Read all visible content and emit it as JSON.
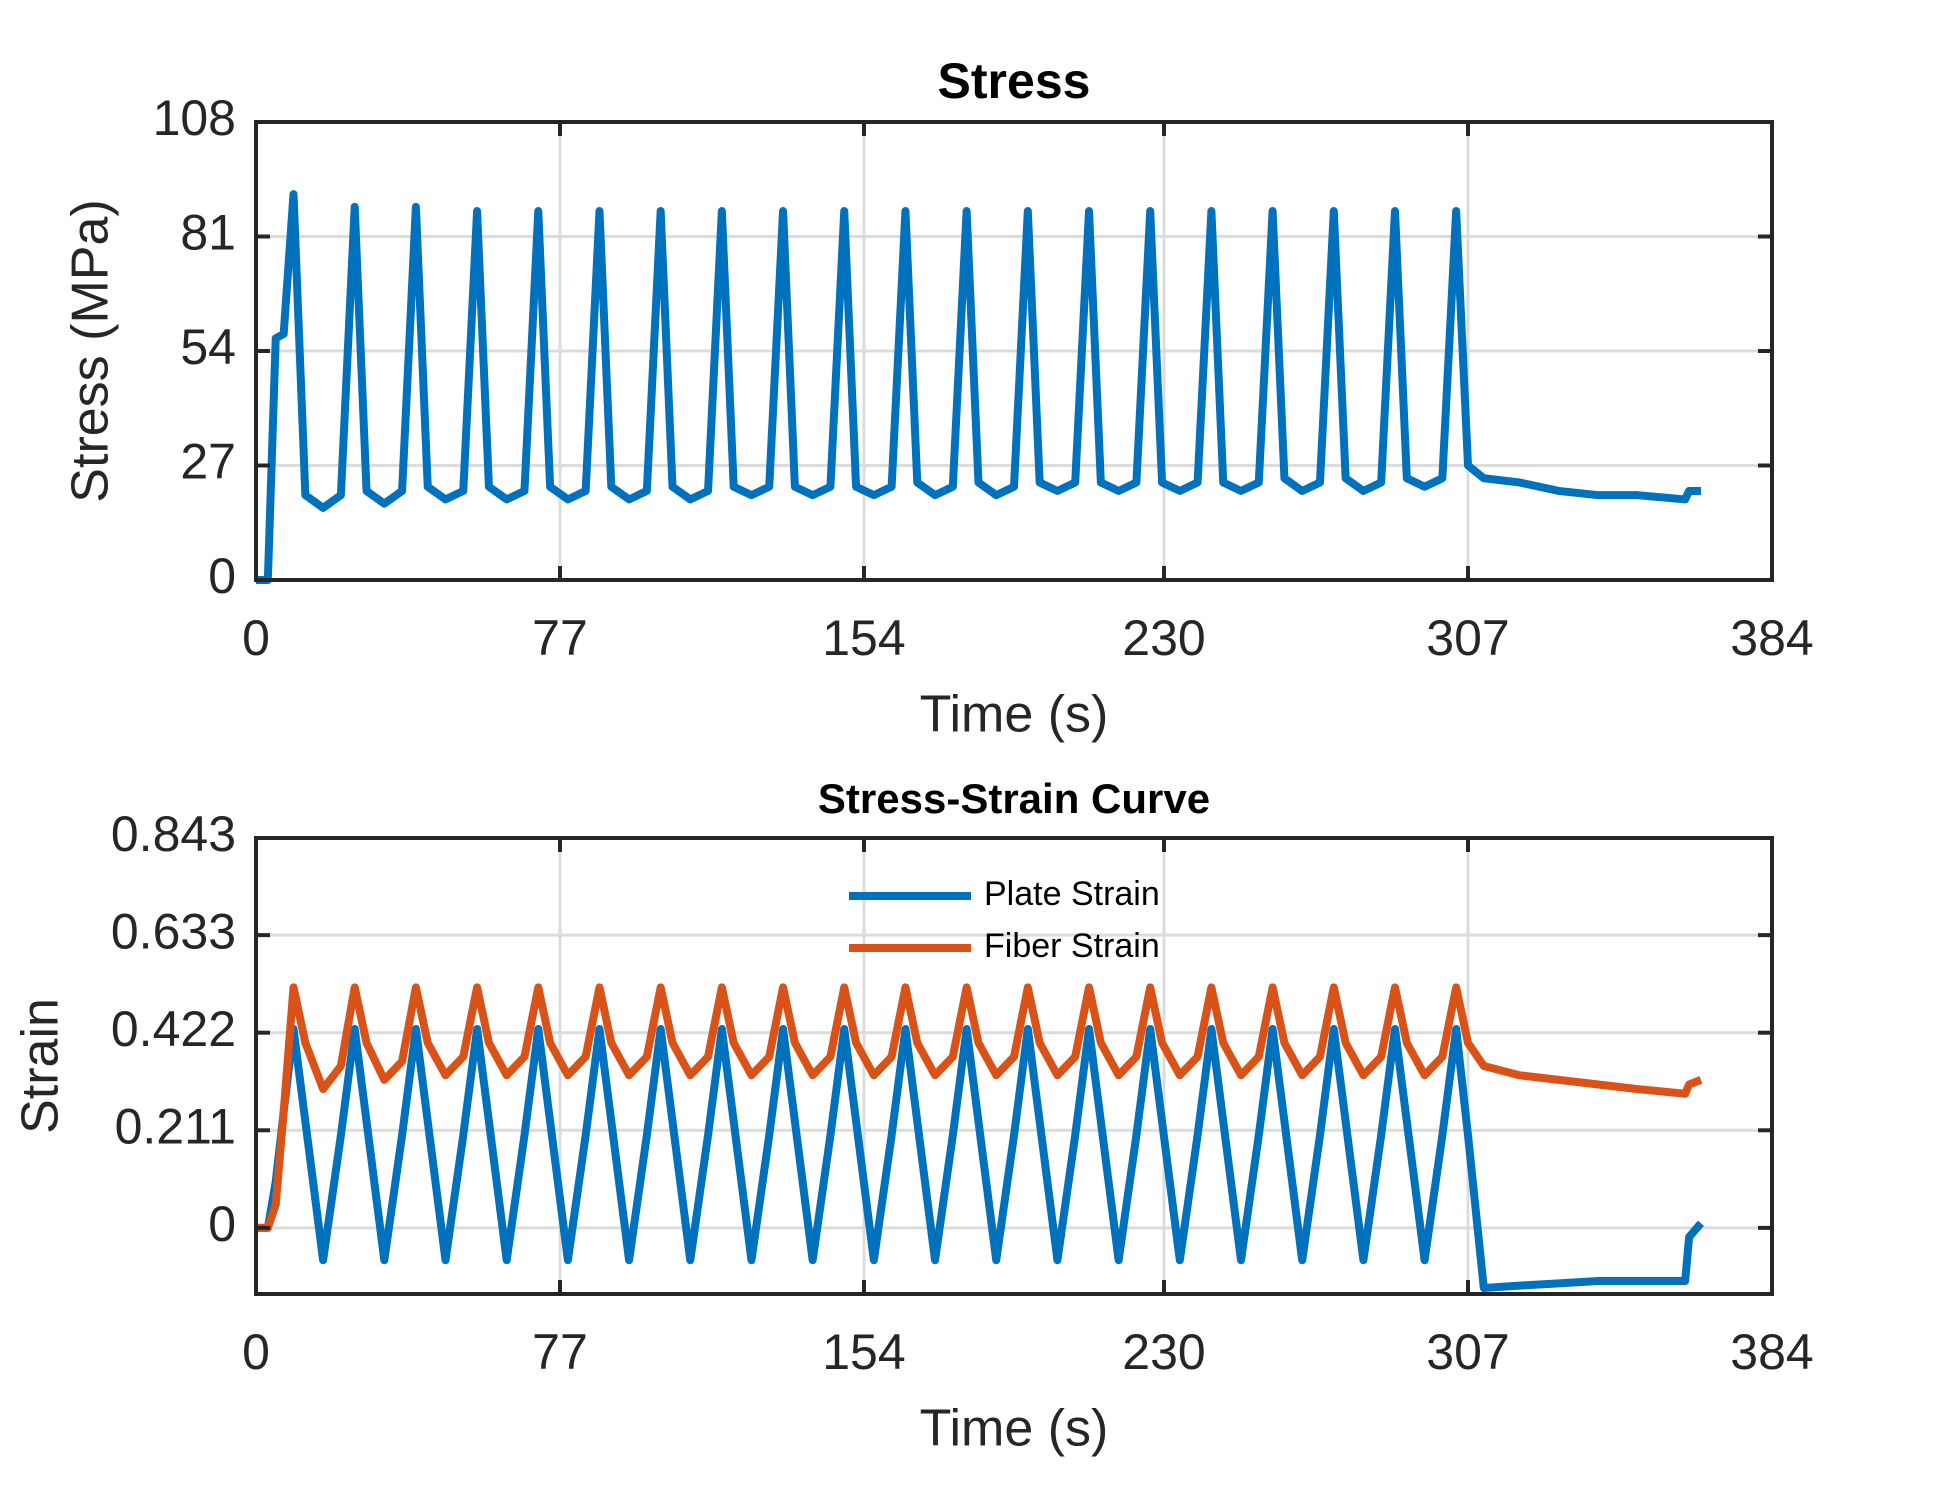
{
  "chart_data": [
    {
      "type": "line",
      "title": "Stress",
      "xlabel": "Time (s)",
      "ylabel": "Stress (MPa)",
      "xlim": [
        0,
        384
      ],
      "xticks": [
        0,
        77,
        154,
        230,
        307,
        384
      ],
      "ylim": [
        0,
        108
      ],
      "yticks": [
        0,
        27,
        54,
        81,
        108
      ],
      "grid": true,
      "x": [
        0,
        3,
        5,
        7,
        9.5,
        12.5,
        17,
        21.5,
        25,
        28,
        32.5,
        37,
        40.5,
        43.5,
        48,
        52.5,
        56,
        59,
        63.5,
        68,
        71.5,
        74.5,
        79,
        83.5,
        87,
        90,
        94.5,
        99,
        102.5,
        105.5,
        110,
        114.5,
        118,
        121,
        125.5,
        130,
        133.5,
        136.5,
        141,
        145.5,
        149,
        152,
        156.5,
        161,
        164.5,
        167.5,
        172,
        176.5,
        180,
        183,
        187.5,
        192,
        195.5,
        198.5,
        203,
        207.5,
        211,
        214,
        218.5,
        223,
        226.5,
        229.5,
        234,
        238.5,
        242,
        245,
        249.5,
        254,
        257.5,
        260.5,
        265,
        269.5,
        273,
        276,
        280.5,
        285,
        288.5,
        291.5,
        296,
        300.5,
        304,
        307,
        311,
        320,
        330,
        340,
        350,
        362,
        363,
        366
      ],
      "series": [
        {
          "name": "Stress",
          "color": "#0072bd",
          "values": [
            0,
            0,
            57,
            58,
            91,
            20,
            17,
            20,
            88,
            21,
            18,
            21,
            88,
            22,
            19,
            21,
            87,
            22,
            19,
            21,
            87,
            22,
            19,
            21,
            87,
            22,
            19,
            21,
            87,
            22,
            19,
            21,
            87,
            22,
            20,
            22,
            87,
            22,
            20,
            22,
            87,
            22,
            20,
            22,
            87,
            23,
            20,
            22,
            87,
            23,
            20,
            22,
            87,
            23,
            21,
            23,
            87,
            23,
            21,
            23,
            87,
            23,
            21,
            23,
            87,
            23,
            21,
            23,
            87,
            24,
            21,
            23,
            87,
            24,
            21,
            23,
            87,
            24,
            22,
            24,
            87,
            27,
            24,
            23,
            21,
            20,
            20,
            19,
            21,
            21
          ]
        }
      ]
    },
    {
      "type": "line",
      "title": "Stress-Strain Curve",
      "xlabel": "Time (s)",
      "ylabel": "Strain",
      "xlim": [
        0,
        384
      ],
      "xticks": [
        0,
        77,
        154,
        230,
        307,
        384
      ],
      "ylim": [
        -0.143,
        0.843
      ],
      "yticks": [
        0,
        0.211,
        0.422,
        0.633,
        0.843
      ],
      "grid": true,
      "legend": "north",
      "x": [
        0,
        3,
        5,
        7,
        9.5,
        12.5,
        17,
        21.5,
        25,
        28,
        32.5,
        37,
        40.5,
        43.5,
        48,
        52.5,
        56,
        59,
        63.5,
        68,
        71.5,
        74.5,
        79,
        83.5,
        87,
        90,
        94.5,
        99,
        102.5,
        105.5,
        110,
        114.5,
        118,
        121,
        125.5,
        130,
        133.5,
        136.5,
        141,
        145.5,
        149,
        152,
        156.5,
        161,
        164.5,
        167.5,
        172,
        176.5,
        180,
        183,
        187.5,
        192,
        195.5,
        198.5,
        203,
        207.5,
        211,
        214,
        218.5,
        223,
        226.5,
        229.5,
        234,
        238.5,
        242,
        245,
        249.5,
        254,
        257.5,
        260.5,
        265,
        269.5,
        273,
        276,
        280.5,
        285,
        288.5,
        291.5,
        296,
        300.5,
        304,
        307,
        311,
        320,
        330,
        340,
        350,
        362,
        363,
        366
      ],
      "series": [
        {
          "name": "Plate Strain",
          "color": "#0072bd",
          "values": [
            0,
            0,
            0.1,
            0.25,
            0.43,
            0.23,
            -0.07,
            0.2,
            0.43,
            0.23,
            -0.07,
            0.2,
            0.43,
            0.23,
            -0.07,
            0.2,
            0.43,
            0.23,
            -0.07,
            0.2,
            0.43,
            0.23,
            -0.07,
            0.2,
            0.43,
            0.23,
            -0.07,
            0.2,
            0.43,
            0.23,
            -0.07,
            0.2,
            0.43,
            0.23,
            -0.07,
            0.2,
            0.43,
            0.23,
            -0.07,
            0.2,
            0.43,
            0.23,
            -0.07,
            0.2,
            0.43,
            0.23,
            -0.07,
            0.2,
            0.43,
            0.23,
            -0.07,
            0.2,
            0.43,
            0.23,
            -0.07,
            0.2,
            0.43,
            0.23,
            -0.07,
            0.2,
            0.43,
            0.23,
            -0.07,
            0.2,
            0.43,
            0.23,
            -0.07,
            0.2,
            0.43,
            0.23,
            -0.07,
            0.2,
            0.43,
            0.23,
            -0.07,
            0.2,
            0.43,
            0.23,
            -0.07,
            0.2,
            0.43,
            0.2,
            -0.13,
            -0.125,
            -0.12,
            -0.115,
            -0.115,
            -0.115,
            -0.02,
            0.01
          ]
        },
        {
          "name": "Fiber Strain",
          "color": "#d95319",
          "values": [
            0,
            0,
            0.05,
            0.25,
            0.52,
            0.4,
            0.3,
            0.35,
            0.52,
            0.4,
            0.32,
            0.36,
            0.52,
            0.4,
            0.33,
            0.37,
            0.52,
            0.4,
            0.33,
            0.37,
            0.52,
            0.4,
            0.33,
            0.37,
            0.52,
            0.4,
            0.33,
            0.37,
            0.52,
            0.4,
            0.33,
            0.37,
            0.52,
            0.4,
            0.33,
            0.37,
            0.52,
            0.4,
            0.33,
            0.37,
            0.52,
            0.4,
            0.33,
            0.37,
            0.52,
            0.4,
            0.33,
            0.37,
            0.52,
            0.4,
            0.33,
            0.37,
            0.52,
            0.4,
            0.33,
            0.37,
            0.52,
            0.4,
            0.33,
            0.37,
            0.52,
            0.4,
            0.33,
            0.37,
            0.52,
            0.4,
            0.33,
            0.37,
            0.52,
            0.4,
            0.33,
            0.37,
            0.52,
            0.4,
            0.33,
            0.37,
            0.52,
            0.4,
            0.33,
            0.37,
            0.52,
            0.4,
            0.35,
            0.33,
            0.32,
            0.31,
            0.3,
            0.29,
            0.31,
            0.32
          ]
        }
      ]
    }
  ]
}
